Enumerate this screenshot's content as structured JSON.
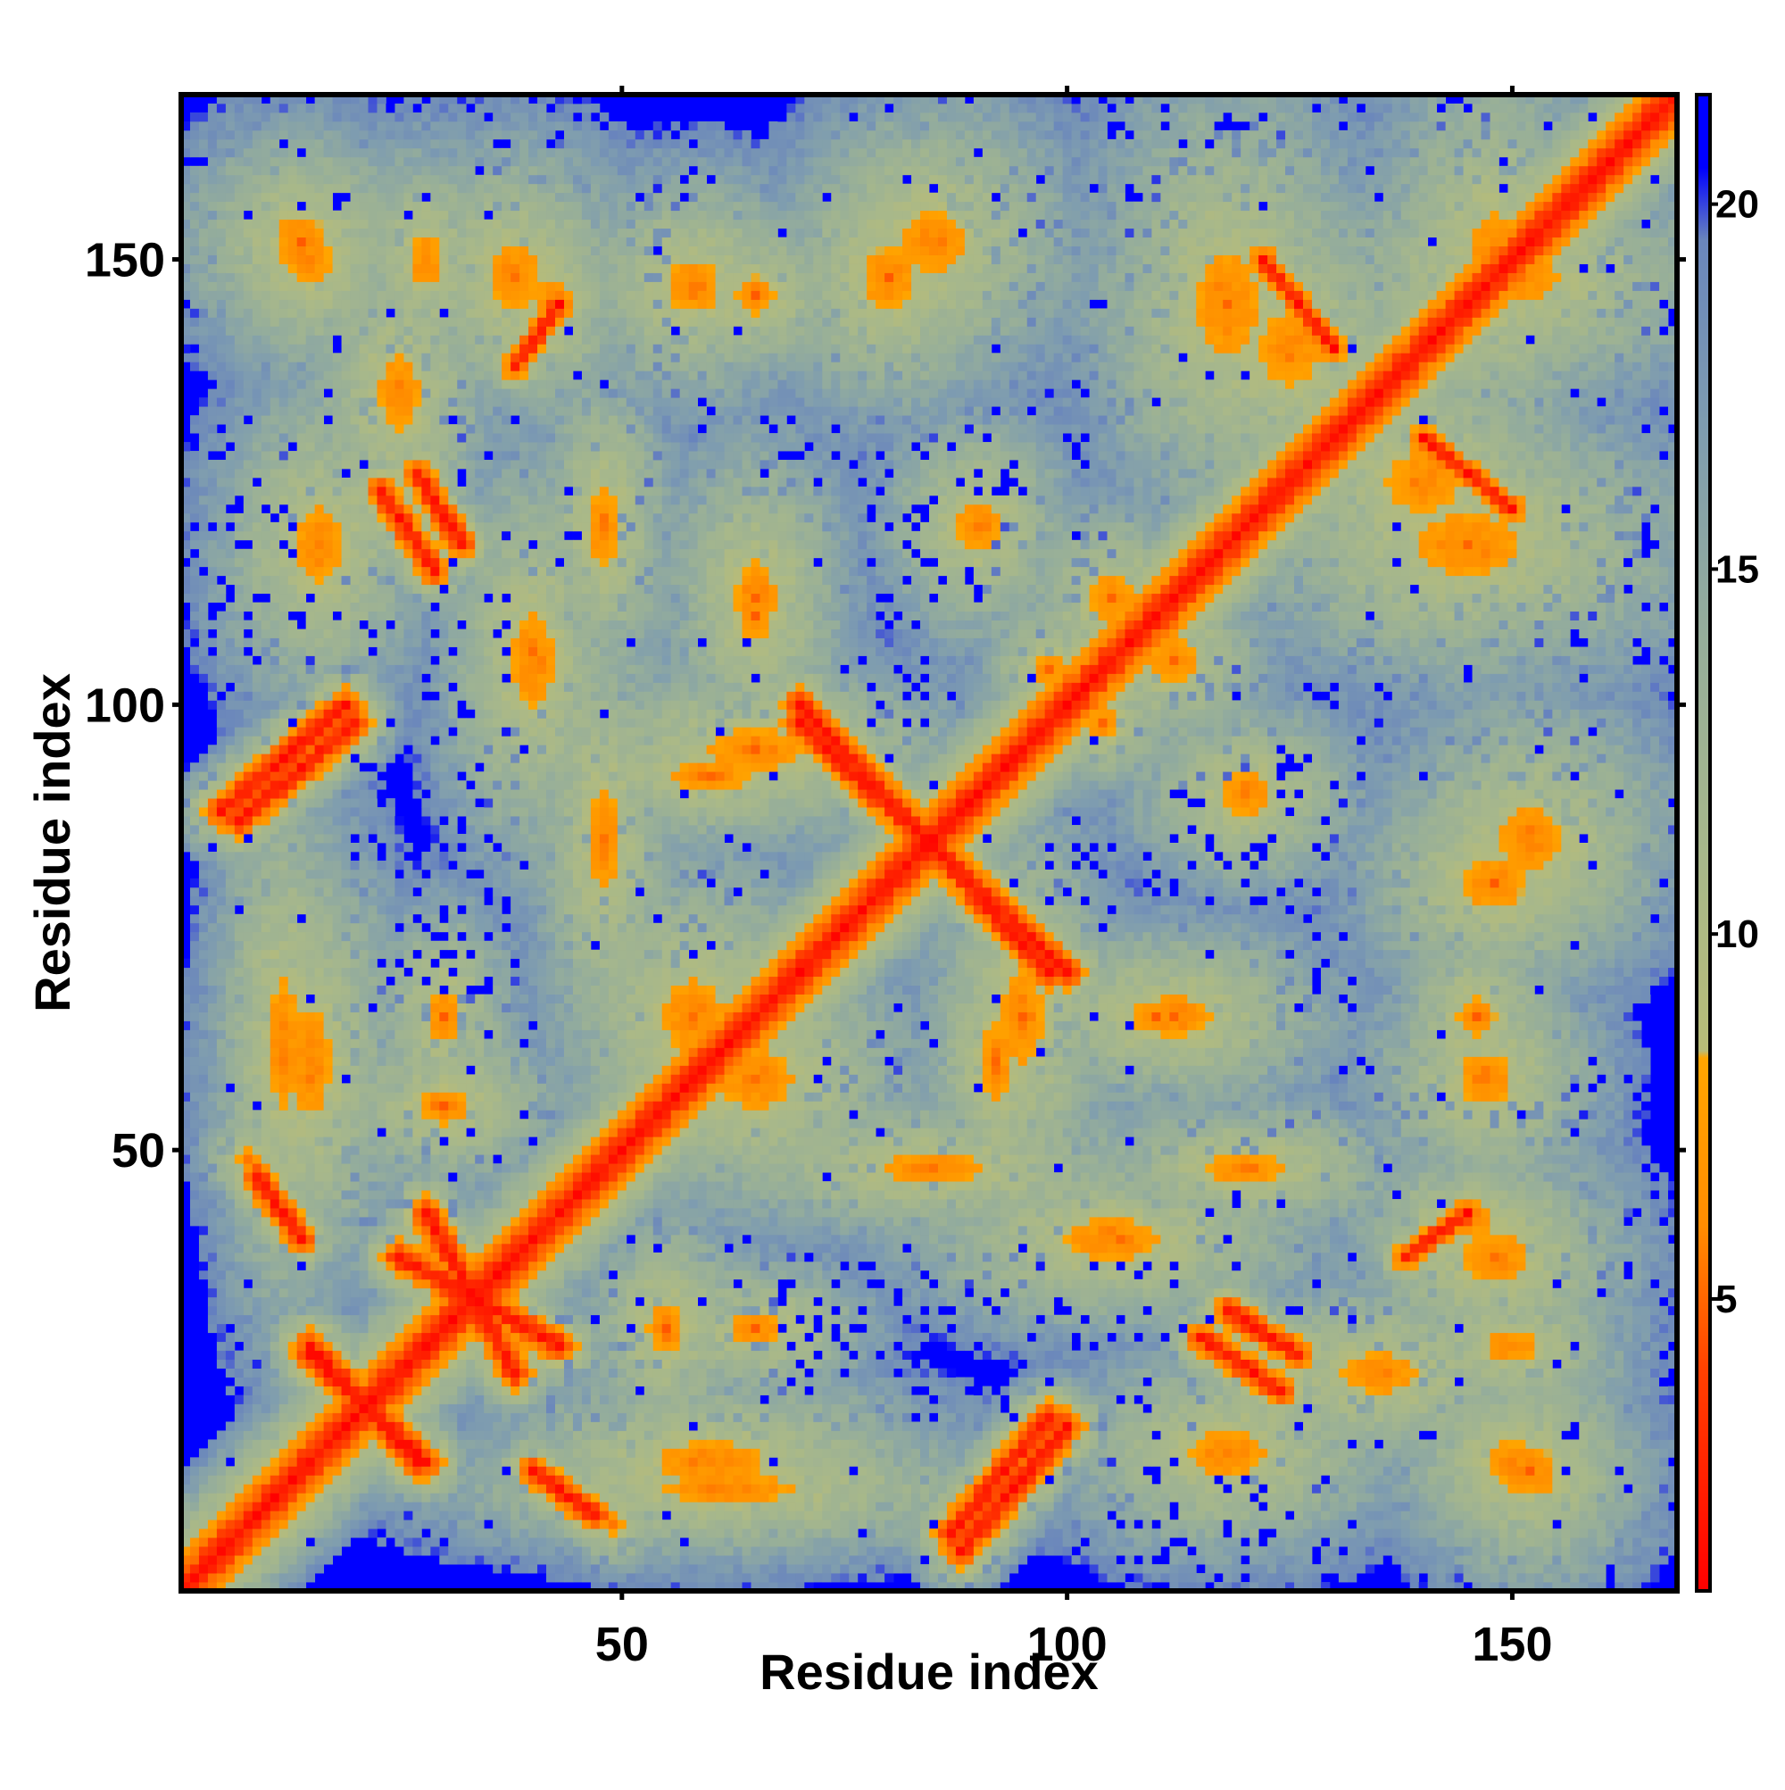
{
  "chart_data": {
    "type": "heatmap",
    "title": "",
    "xlabel": "Residue index",
    "ylabel": "Residue index",
    "n_residues": 168,
    "xlim": [
      0.5,
      168.5
    ],
    "ylim": [
      0.5,
      168.5
    ],
    "x_ticks": [
      50,
      100,
      150
    ],
    "y_ticks": [
      50,
      100,
      150
    ],
    "colorbar": {
      "range": [
        1,
        21.5
      ],
      "ticks": [
        5,
        10,
        15,
        20
      ],
      "stops": [
        {
          "value": 1,
          "color": "#ff0000"
        },
        {
          "value": 4,
          "color": "#ff4000"
        },
        {
          "value": 6,
          "color": "#ff8c00"
        },
        {
          "value": 8.3,
          "color": "#ffa500"
        },
        {
          "value": 8.4,
          "color": "#b8bc78"
        },
        {
          "value": 11,
          "color": "#a8b88a"
        },
        {
          "value": 14,
          "color": "#96ae9a"
        },
        {
          "value": 17,
          "color": "#7e9cb0"
        },
        {
          "value": 19.5,
          "color": "#6a86bc"
        },
        {
          "value": 20.5,
          "color": "#0000ff"
        },
        {
          "value": 21.5,
          "color": "#0000ff"
        }
      ]
    },
    "background": {
      "value": 21.5,
      "color": "#0000ff"
    },
    "contact_features": [
      {
        "kind": "band",
        "from": [
          1,
          1
        ],
        "to": [
          168,
          168
        ],
        "halfwidth": 3.0
      },
      {
        "kind": "band",
        "from": [
          5,
          88
        ],
        "to": [
          19,
          100
        ],
        "halfwidth": 2.0
      },
      {
        "kind": "band",
        "from": [
          25,
          38
        ],
        "to": [
          43,
          28
        ],
        "halfwidth": 2.0
      },
      {
        "kind": "band",
        "from": [
          15,
          28
        ],
        "to": [
          27,
          15
        ],
        "halfwidth": 2.0
      },
      {
        "kind": "band",
        "from": [
          40,
          14
        ],
        "to": [
          47,
          9
        ],
        "halfwidth": 1.8
      },
      {
        "kind": "band",
        "from": [
          87,
          7
        ],
        "to": [
          98,
          20
        ],
        "halfwidth": 2.0
      },
      {
        "kind": "band",
        "from": [
          115,
          29
        ],
        "to": [
          124,
          23
        ],
        "halfwidth": 1.8
      },
      {
        "kind": "band",
        "from": [
          70,
          98
        ],
        "to": [
          100,
          70
        ],
        "halfwidth": 2.0
      },
      {
        "kind": "band",
        "from": [
          27,
          126
        ],
        "to": [
          32,
          118
        ],
        "halfwidth": 1.8
      },
      {
        "kind": "band",
        "from": [
          38,
          138
        ],
        "to": [
          43,
          145
        ],
        "halfwidth": 1.5
      },
      {
        "kind": "band",
        "from": [
          140,
          130
        ],
        "to": [
          150,
          122
        ],
        "halfwidth": 1.5
      },
      {
        "kind": "blob",
        "center": [
          8,
          49
        ],
        "radius": [
          4,
          4
        ]
      },
      {
        "kind": "blob",
        "center": [
          15,
          60
        ],
        "radius": [
          8,
          20
        ]
      },
      {
        "kind": "blob",
        "center": [
          16,
          118
        ],
        "radius": [
          9,
          14
        ]
      },
      {
        "kind": "blob",
        "center": [
          15,
          150
        ],
        "radius": [
          8,
          10
        ]
      },
      {
        "kind": "blob",
        "center": [
          28,
          150
        ],
        "radius": [
          6,
          10
        ]
      },
      {
        "kind": "blob",
        "center": [
          42,
          145
        ],
        "radius": [
          6,
          10
        ]
      },
      {
        "kind": "blob",
        "center": [
          40,
          105
        ],
        "radius": [
          8,
          18
        ]
      },
      {
        "kind": "blob",
        "center": [
          30,
          65
        ],
        "radius": [
          6,
          10
        ]
      },
      {
        "kind": "blob",
        "center": [
          55,
          30
        ],
        "radius": [
          7,
          10
        ]
      },
      {
        "kind": "blob",
        "center": [
          62,
          12
        ],
        "radius": [
          25,
          6
        ]
      },
      {
        "kind": "blob",
        "center": [
          58,
          65
        ],
        "radius": [
          12,
          14
        ]
      },
      {
        "kind": "blob",
        "center": [
          65,
          112
        ],
        "radius": [
          8,
          14
        ]
      },
      {
        "kind": "blob",
        "center": [
          65,
          95
        ],
        "radius": [
          18,
          8
        ]
      },
      {
        "kind": "blob",
        "center": [
          58,
          147
        ],
        "radius": [
          10,
          10
        ]
      },
      {
        "kind": "blob",
        "center": [
          80,
          148
        ],
        "radius": [
          10,
          12
        ]
      },
      {
        "kind": "blob",
        "center": [
          90,
          120
        ],
        "radius": [
          8,
          10
        ]
      },
      {
        "kind": "blob",
        "center": [
          85,
          48
        ],
        "radius": [
          20,
          6
        ]
      },
      {
        "kind": "blob",
        "center": [
          92,
          60
        ],
        "radius": [
          6,
          14
        ]
      },
      {
        "kind": "blob",
        "center": [
          110,
          65
        ],
        "radius": [
          10,
          6
        ]
      },
      {
        "kind": "blob",
        "center": [
          120,
          48
        ],
        "radius": [
          14,
          6
        ]
      },
      {
        "kind": "blob",
        "center": [
          118,
          145
        ],
        "radius": [
          12,
          20
        ]
      },
      {
        "kind": "blob",
        "center": [
          140,
          125
        ],
        "radius": [
          14,
          12
        ]
      },
      {
        "kind": "blob",
        "center": [
          148,
          150
        ],
        "radius": [
          10,
          18
        ]
      },
      {
        "kind": "blob",
        "center": [
          152,
          85
        ],
        "radius": [
          12,
          12
        ]
      },
      {
        "kind": "blob",
        "center": [
          146,
          65
        ],
        "radius": [
          7,
          8
        ]
      },
      {
        "kind": "blob",
        "center": [
          148,
          38
        ],
        "radius": [
          12,
          10
        ]
      },
      {
        "kind": "blob",
        "center": [
          152,
          14
        ],
        "radius": [
          10,
          10
        ]
      },
      {
        "kind": "blob",
        "center": [
          135,
          25
        ],
        "radius": [
          14,
          8
        ]
      },
      {
        "kind": "blob",
        "center": [
          104,
          98
        ],
        "radius": [
          6,
          6
        ]
      },
      {
        "kind": "blob",
        "center": [
          112,
          105
        ],
        "radius": [
          8,
          8
        ]
      }
    ]
  }
}
